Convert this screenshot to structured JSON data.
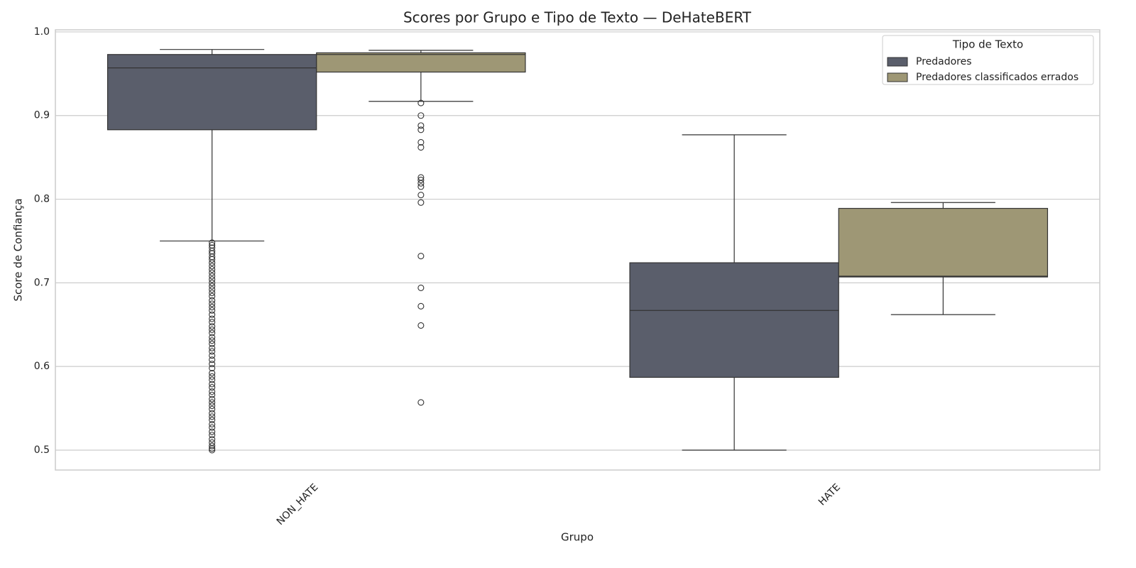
{
  "chart_data": {
    "type": "box",
    "title": "Scores por Grupo e Tipo de Texto — DeHateBERT",
    "xlabel": "Grupo",
    "ylabel": "Score de Confiança",
    "categories": [
      "NON_HATE",
      "HATE"
    ],
    "legend_title": "Tipo de Texto",
    "legend_loc": "upper right",
    "ylim": [
      0.4762,
      1.0025
    ],
    "yticks": [
      0.5,
      0.6,
      0.7,
      0.8,
      0.9,
      {
        "value": 1,
        "label": "1.0"
      }
    ],
    "grid": true,
    "series": [
      {
        "name": "Predadores",
        "color": "#5a5e6b",
        "boxes": [
          {
            "whislo": 0.75,
            "q1": 0.883,
            "med": 0.957,
            "q3": 0.973,
            "whishi": 0.979,
            "fliers": [
              0.748,
              0.745,
              0.742,
              0.738,
              0.735,
              0.731,
              0.728,
              0.724,
              0.72,
              0.716,
              0.712,
              0.708,
              0.704,
              0.7,
              0.696,
              0.692,
              0.688,
              0.684,
              0.679,
              0.675,
              0.671,
              0.667,
              0.662,
              0.657,
              0.653,
              0.648,
              0.644,
              0.64,
              0.635,
              0.631,
              0.627,
              0.622,
              0.618,
              0.613,
              0.608,
              0.603,
              0.598,
              0.592,
              0.588,
              0.584,
              0.579,
              0.575,
              0.57,
              0.566,
              0.561,
              0.557,
              0.553,
              0.549,
              0.544,
              0.54,
              0.536,
              0.531,
              0.527,
              0.522,
              0.518,
              0.513,
              0.509,
              0.505,
              0.502,
              0.5
            ]
          },
          {
            "whislo": 0.5,
            "q1": 0.587,
            "med": 0.667,
            "q3": 0.724,
            "whishi": 0.877,
            "fliers": []
          }
        ]
      },
      {
        "name": "Predadores classificados errados",
        "color": "#9e9775",
        "boxes": [
          {
            "whislo": 0.917,
            "q1": 0.952,
            "med": 0.973,
            "q3": 0.975,
            "whishi": 0.978,
            "fliers": [
              0.915,
              0.9,
              0.888,
              0.883,
              0.868,
              0.862,
              0.826,
              0.823,
              0.819,
              0.815,
              0.805,
              0.796,
              0.732,
              0.694,
              0.672,
              0.649,
              0.557
            ]
          },
          {
            "whislo": 0.662,
            "q1": 0.707,
            "med": 0.708,
            "q3": 0.789,
            "whishi": 0.796,
            "fliers": []
          }
        ]
      }
    ]
  }
}
